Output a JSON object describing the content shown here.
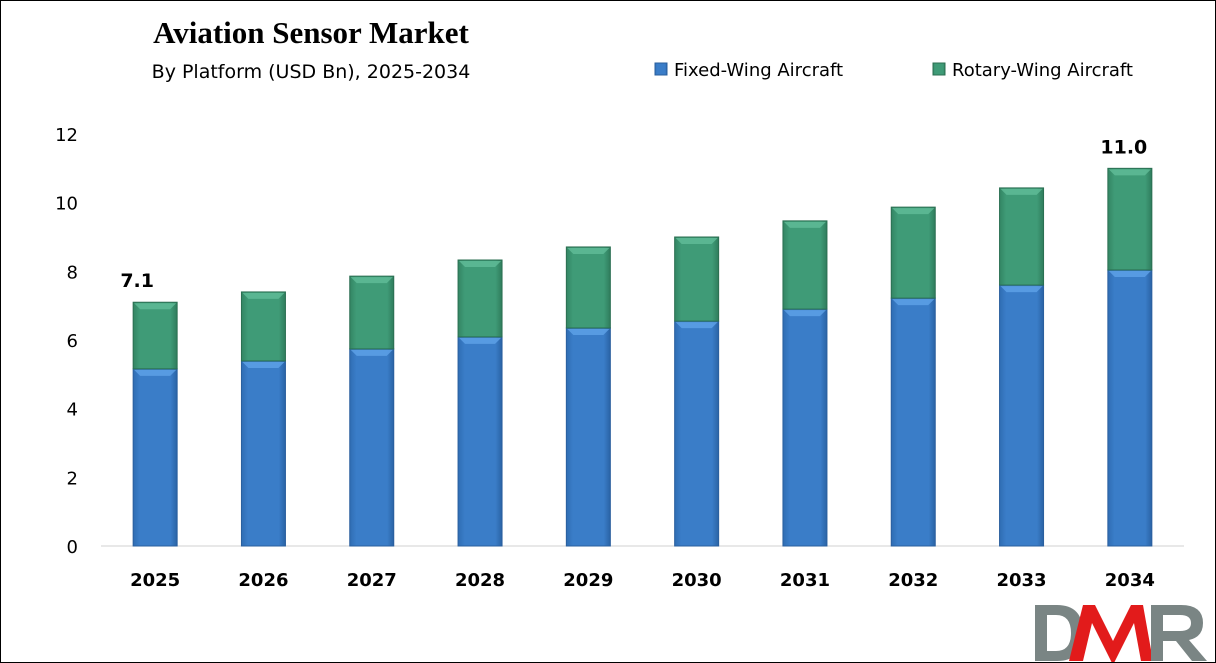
{
  "chart_data": {
    "type": "bar",
    "stacked": true,
    "title": "Aviation Sensor Market",
    "subtitle": "By Platform (USD Bn), 2025-2034",
    "xlabel": "",
    "ylabel": "",
    "categories": [
      "2025",
      "2026",
      "2027",
      "2028",
      "2029",
      "2030",
      "2031",
      "2032",
      "2033",
      "2034"
    ],
    "series": [
      {
        "name": "Fixed-Wing Aircraft",
        "color": "#3a7cc7",
        "values": [
          5.16,
          5.39,
          5.74,
          6.09,
          6.35,
          6.55,
          6.9,
          7.22,
          7.6,
          8.04
        ]
      },
      {
        "name": "Rotary-Wing Aircraft",
        "color": "#3f9b76",
        "values": [
          1.94,
          2.01,
          2.12,
          2.24,
          2.36,
          2.45,
          2.57,
          2.65,
          2.83,
          2.96
        ]
      }
    ],
    "data_labels": [
      {
        "category": "2025",
        "text": "7.1"
      },
      {
        "category": "2034",
        "text": "11.0"
      }
    ],
    "ylim": [
      0,
      12
    ],
    "yticks": [
      "0",
      "2",
      "4",
      "6",
      "8",
      "10",
      "12"
    ],
    "grid": false,
    "legend_position": "top-right"
  },
  "logo": {
    "text": "DMR",
    "colors": [
      "#7a8584",
      "#e21b1b"
    ]
  }
}
